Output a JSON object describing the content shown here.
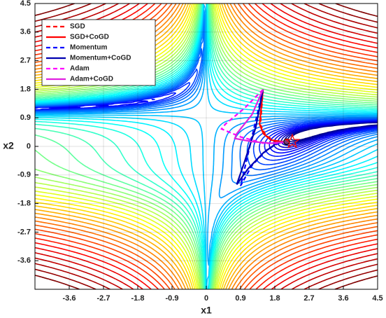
{
  "chart_data": {
    "type": "line",
    "xlabel": "x1",
    "ylabel": "x2",
    "xlim": [
      -4.5,
      4.5
    ],
    "ylim": [
      -4.5,
      4.5
    ],
    "xticks": [
      -3.6,
      -2.7,
      -1.8,
      -0.9,
      0,
      0.9,
      1.8,
      2.7,
      3.6,
      4.5
    ],
    "yticks": [
      -3.6,
      -2.7,
      -1.8,
      -0.9,
      0,
      0.9,
      1.8,
      2.7,
      3.6,
      4.5
    ],
    "grid": true,
    "legend": "upper left",
    "series": [
      {
        "name": "SGD",
        "color": "#ff0000",
        "dash": true,
        "x": [
          1.49,
          1.42,
          1.56,
          1.84,
          2.11
        ],
        "values": [
          1.79,
          0.68,
          0.35,
          0.13,
          0.15
        ]
      },
      {
        "name": "SGD+CoGD",
        "color": "#ff0000",
        "dash": false,
        "x": [
          1.49,
          1.4,
          1.5,
          1.7,
          2.0,
          2.11
        ],
        "values": [
          1.79,
          0.7,
          0.4,
          0.2,
          0.15,
          0.15
        ]
      },
      {
        "name": "Momentum",
        "color": "#0000ff",
        "dash": true,
        "x": [
          1.49,
          1.2,
          0.95,
          0.9,
          1.2,
          1.6,
          1.9,
          2.11
        ],
        "values": [
          1.79,
          0.3,
          -1.0,
          -1.24,
          -0.6,
          -0.1,
          0.1,
          0.15
        ]
      },
      {
        "name": "Momentum+CoGD",
        "color": "#0000b0",
        "dash": false,
        "x": [
          1.49,
          1.3,
          1.0,
          0.8,
          1.1,
          1.5,
          1.85,
          2.11
        ],
        "values": [
          1.79,
          0.6,
          -0.5,
          -1.2,
          -0.7,
          -0.2,
          0.1,
          0.15
        ]
      },
      {
        "name": "Adam",
        "color": "#ff00ff",
        "dash": true,
        "x": [
          1.49,
          1.0,
          0.5,
          0.4,
          0.9,
          1.5,
          1.9,
          2.11
        ],
        "values": [
          1.79,
          1.2,
          0.7,
          0.55,
          0.3,
          0.1,
          0.1,
          0.15
        ]
      },
      {
        "name": "Adam+CoGD",
        "color": "#e020e0",
        "dash": false,
        "x": [
          1.49,
          1.2,
          0.8,
          0.75,
          1.2,
          1.7,
          2.11
        ],
        "values": [
          1.79,
          1.0,
          0.4,
          0.25,
          0.15,
          0.1,
          0.15
        ]
      }
    ],
    "markers": [
      {
        "x": 2.26,
        "y": 0.15,
        "symbol": "star",
        "color": "#ff0000"
      }
    ]
  }
}
